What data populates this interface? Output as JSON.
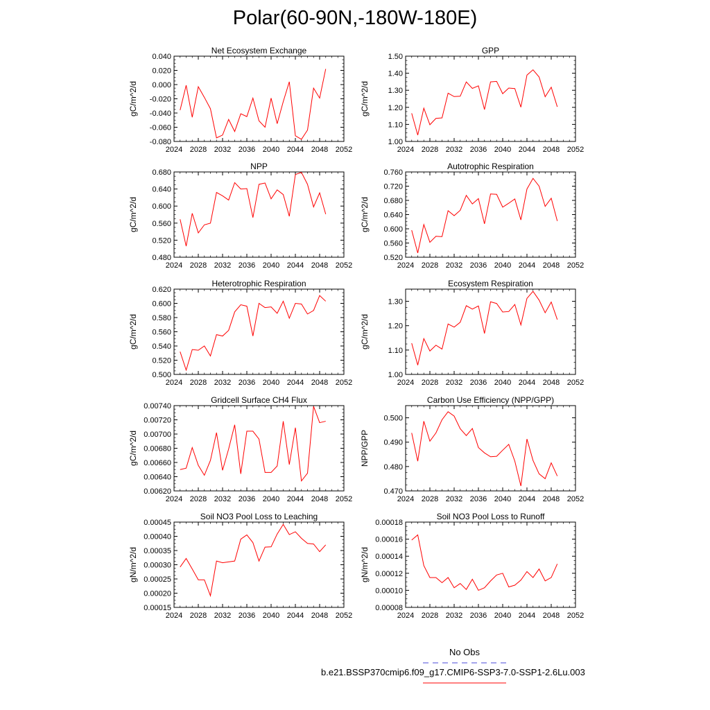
{
  "page": {
    "title": "Polar(60-90N,-180W-180E)"
  },
  "legend": {
    "obs": {
      "label": "No Obs",
      "color": "#4a4ad8"
    },
    "model": {
      "label": "b.e21.BSSP370cmip6.f09_g17.CMIP6-SSP3-7.0-SSP1-2.6Lu.003",
      "color": "#ff0000"
    }
  },
  "chart_data": [
    {
      "type": "line",
      "title": "Net Ecosystem Exchange",
      "ylabel": "gC/m^2/d",
      "xlim": [
        2024,
        2052
      ],
      "xticks": [
        "2024",
        "2028",
        "2032",
        "2036",
        "2040",
        "2044",
        "2048",
        "2052"
      ],
      "ylim": [
        -0.08,
        0.04
      ],
      "yticks": [
        "-0.080",
        "-0.060",
        "-0.040",
        "-0.020",
        "0.000",
        "0.020",
        "0.040"
      ],
      "x": [
        2025,
        2026,
        2027,
        2028,
        2029,
        2030,
        2031,
        2032,
        2033,
        2034,
        2035,
        2036,
        2037,
        2038,
        2039,
        2040,
        2041,
        2042,
        2043,
        2044,
        2045,
        2046,
        2047,
        2048,
        2049
      ],
      "series": [
        {
          "values": [
            -0.036,
            -0.001,
            -0.046,
            -0.003,
            -0.018,
            -0.034,
            -0.075,
            -0.071,
            -0.049,
            -0.066,
            -0.041,
            -0.045,
            -0.019,
            -0.051,
            -0.06,
            -0.019,
            -0.055,
            -0.024,
            0.004,
            -0.072,
            -0.077,
            -0.064,
            -0.005,
            -0.019,
            0.022
          ],
          "color": "#ff0000"
        }
      ]
    },
    {
      "type": "line",
      "title": "GPP",
      "ylabel": "gC/m^2/d",
      "xlim": [
        2024,
        2052
      ],
      "xticks": [
        "2024",
        "2028",
        "2032",
        "2036",
        "2040",
        "2044",
        "2048",
        "2052"
      ],
      "ylim": [
        1.0,
        1.5
      ],
      "yticks": [
        "1.00",
        "1.10",
        "1.20",
        "1.30",
        "1.40",
        "1.50"
      ],
      "x": [
        2025,
        2026,
        2027,
        2028,
        2029,
        2030,
        2031,
        2032,
        2033,
        2034,
        2035,
        2036,
        2037,
        2038,
        2039,
        2040,
        2041,
        2042,
        2043,
        2044,
        2045,
        2046,
        2047,
        2048,
        2049
      ],
      "series": [
        {
          "values": [
            1.165,
            1.037,
            1.195,
            1.098,
            1.135,
            1.138,
            1.283,
            1.263,
            1.265,
            1.349,
            1.311,
            1.326,
            1.187,
            1.349,
            1.352,
            1.28,
            1.313,
            1.31,
            1.201,
            1.389,
            1.42,
            1.378,
            1.262,
            1.318,
            1.203
          ],
          "color": "#ff0000"
        }
      ]
    },
    {
      "type": "line",
      "title": "NPP",
      "ylabel": "gC/m^2/d",
      "xlim": [
        2024,
        2052
      ],
      "xticks": [
        "2024",
        "2028",
        "2032",
        "2036",
        "2040",
        "2044",
        "2048",
        "2052"
      ],
      "ylim": [
        0.48,
        0.68
      ],
      "yticks": [
        "0.480",
        "0.520",
        "0.560",
        "0.600",
        "0.640",
        "0.680"
      ],
      "x": [
        2025,
        2026,
        2027,
        2028,
        2029,
        2030,
        2031,
        2032,
        2033,
        2034,
        2035,
        2036,
        2037,
        2038,
        2039,
        2040,
        2041,
        2042,
        2043,
        2044,
        2045,
        2046,
        2047,
        2048,
        2049
      ],
      "series": [
        {
          "values": [
            0.569,
            0.506,
            0.583,
            0.537,
            0.556,
            0.56,
            0.632,
            0.624,
            0.614,
            0.655,
            0.64,
            0.641,
            0.573,
            0.651,
            0.654,
            0.617,
            0.638,
            0.627,
            0.576,
            0.674,
            0.679,
            0.651,
            0.598,
            0.631,
            0.581
          ],
          "color": "#ff0000"
        }
      ]
    },
    {
      "type": "line",
      "title": "Autotrophic Respiration",
      "ylabel": "gC/m^2/d",
      "xlim": [
        2024,
        2052
      ],
      "xticks": [
        "2024",
        "2028",
        "2032",
        "2036",
        "2040",
        "2044",
        "2048",
        "2052"
      ],
      "ylim": [
        0.52,
        0.76
      ],
      "yticks": [
        "0.520",
        "0.560",
        "0.600",
        "0.640",
        "0.680",
        "0.720",
        "0.760"
      ],
      "x": [
        2025,
        2026,
        2027,
        2028,
        2029,
        2030,
        2031,
        2032,
        2033,
        2034,
        2035,
        2036,
        2037,
        2038,
        2039,
        2040,
        2041,
        2042,
        2043,
        2044,
        2045,
        2046,
        2047,
        2048,
        2049
      ],
      "series": [
        {
          "values": [
            0.596,
            0.532,
            0.612,
            0.562,
            0.579,
            0.578,
            0.651,
            0.637,
            0.652,
            0.694,
            0.67,
            0.685,
            0.614,
            0.698,
            0.697,
            0.661,
            0.672,
            0.684,
            0.625,
            0.712,
            0.742,
            0.72,
            0.663,
            0.686,
            0.622
          ],
          "color": "#ff0000"
        }
      ]
    },
    {
      "type": "line",
      "title": "Heterotrophic Respiration",
      "ylabel": "gC/m^2/d",
      "xlim": [
        2024,
        2052
      ],
      "xticks": [
        "2024",
        "2028",
        "2032",
        "2036",
        "2040",
        "2044",
        "2048",
        "2052"
      ],
      "ylim": [
        0.5,
        0.62
      ],
      "yticks": [
        "0.500",
        "0.520",
        "0.540",
        "0.560",
        "0.580",
        "0.600",
        "0.620"
      ],
      "x": [
        2025,
        2026,
        2027,
        2028,
        2029,
        2030,
        2031,
        2032,
        2033,
        2034,
        2035,
        2036,
        2037,
        2038,
        2039,
        2040,
        2041,
        2042,
        2043,
        2044,
        2045,
        2046,
        2047,
        2048,
        2049
      ],
      "series": [
        {
          "values": [
            0.532,
            0.506,
            0.535,
            0.534,
            0.54,
            0.526,
            0.556,
            0.554,
            0.562,
            0.588,
            0.598,
            0.596,
            0.554,
            0.6,
            0.594,
            0.595,
            0.586,
            0.603,
            0.579,
            0.6,
            0.599,
            0.585,
            0.59,
            0.611,
            0.603
          ],
          "color": "#ff0000"
        }
      ]
    },
    {
      "type": "line",
      "title": "Ecosystem Respiration",
      "ylabel": "gC/m^2/d",
      "xlim": [
        2024,
        2052
      ],
      "xticks": [
        "2024",
        "2028",
        "2032",
        "2036",
        "2040",
        "2044",
        "2048",
        "2052"
      ],
      "ylim": [
        1.0,
        1.35
      ],
      "yticks": [
        "1.00",
        "1.10",
        "1.20",
        "1.30"
      ],
      "x": [
        2025,
        2026,
        2027,
        2028,
        2029,
        2030,
        2031,
        2032,
        2033,
        2034,
        2035,
        2036,
        2037,
        2038,
        2039,
        2040,
        2041,
        2042,
        2043,
        2044,
        2045,
        2046,
        2047,
        2048,
        2049
      ],
      "series": [
        {
          "values": [
            1.128,
            1.038,
            1.147,
            1.096,
            1.12,
            1.104,
            1.207,
            1.194,
            1.214,
            1.282,
            1.268,
            1.281,
            1.168,
            1.298,
            1.291,
            1.256,
            1.258,
            1.287,
            1.203,
            1.312,
            1.341,
            1.305,
            1.253,
            1.297,
            1.225
          ],
          "color": "#ff0000"
        }
      ]
    },
    {
      "type": "line",
      "title": "Gridcell Surface CH4 Flux",
      "ylabel": "gC/m^2/d",
      "xlim": [
        2024,
        2052
      ],
      "xticks": [
        "2024",
        "2028",
        "2032",
        "2036",
        "2040",
        "2044",
        "2048",
        "2052"
      ],
      "ylim": [
        0.0062,
        0.0074
      ],
      "yticks": [
        "0.00620",
        "0.00640",
        "0.00660",
        "0.00680",
        "0.00700",
        "0.00720",
        "0.00740"
      ],
      "x": [
        2025,
        2026,
        2027,
        2028,
        2029,
        2030,
        2031,
        2032,
        2033,
        2034,
        2035,
        2036,
        2037,
        2038,
        2039,
        2040,
        2041,
        2042,
        2043,
        2044,
        2045,
        2046,
        2047,
        2048,
        2049
      ],
      "series": [
        {
          "values": [
            0.0065,
            0.00652,
            0.00681,
            0.00656,
            0.00642,
            0.00663,
            0.00702,
            0.00649,
            0.00679,
            0.00713,
            0.00644,
            0.00704,
            0.00704,
            0.00693,
            0.00646,
            0.00646,
            0.00655,
            0.00718,
            0.00657,
            0.00709,
            0.00634,
            0.00645,
            0.00739,
            0.00716,
            0.00718
          ],
          "color": "#ff0000"
        }
      ]
    },
    {
      "type": "line",
      "title": "Carbon Use Efficiency (NPP/GPP)",
      "ylabel": "NPP/GPP",
      "xlim": [
        2024,
        2052
      ],
      "xticks": [
        "2024",
        "2028",
        "2032",
        "2036",
        "2040",
        "2044",
        "2048",
        "2052"
      ],
      "ylim": [
        0.47,
        0.505
      ],
      "yticks": [
        "0.470",
        "0.480",
        "0.490",
        "0.500"
      ],
      "x": [
        2025,
        2026,
        2027,
        2028,
        2029,
        2030,
        2031,
        2032,
        2033,
        2034,
        2035,
        2036,
        2037,
        2038,
        2039,
        2040,
        2041,
        2042,
        2043,
        2044,
        2045,
        2046,
        2047,
        2048,
        2049
      ],
      "series": [
        {
          "values": [
            0.4938,
            0.4822,
            0.4986,
            0.4904,
            0.4938,
            0.4992,
            0.5025,
            0.5007,
            0.4955,
            0.4927,
            0.4956,
            0.4878,
            0.4856,
            0.484,
            0.4842,
            0.4867,
            0.4891,
            0.4822,
            0.472,
            0.4913,
            0.4825,
            0.477,
            0.475,
            0.4815,
            0.4761
          ],
          "color": "#ff0000"
        }
      ]
    },
    {
      "type": "line",
      "title": "Soil NO3 Pool Loss to Leaching",
      "ylabel": "gN/m^2/d",
      "xlim": [
        2024,
        2052
      ],
      "xticks": [
        "2024",
        "2028",
        "2032",
        "2036",
        "2040",
        "2044",
        "2048",
        "2052"
      ],
      "ylim": [
        0.00015,
        0.00045
      ],
      "yticks": [
        "0.00015",
        "0.00020",
        "0.00025",
        "0.00030",
        "0.00035",
        "0.00040",
        "0.00045"
      ],
      "x": [
        2025,
        2026,
        2027,
        2028,
        2029,
        2030,
        2031,
        2032,
        2033,
        2034,
        2035,
        2036,
        2037,
        2038,
        2039,
        2040,
        2041,
        2042,
        2043,
        2044,
        2045,
        2046,
        2047,
        2048,
        2049
      ],
      "series": [
        {
          "values": [
            0.000292,
            0.000322,
            0.000285,
            0.000247,
            0.000247,
            0.000191,
            0.000313,
            0.000307,
            0.00031,
            0.000313,
            0.00039,
            0.000405,
            0.000378,
            0.000313,
            0.000362,
            0.000363,
            0.000408,
            0.000442,
            0.000406,
            0.000416,
            0.000393,
            0.000375,
            0.000373,
            0.000346,
            0.00037
          ],
          "color": "#ff0000"
        }
      ]
    },
    {
      "type": "line",
      "title": "Soil NO3 Pool Loss to Runoff",
      "ylabel": "gN/m^2/d",
      "xlim": [
        2024,
        2052
      ],
      "xticks": [
        "2024",
        "2028",
        "2032",
        "2036",
        "2040",
        "2044",
        "2048",
        "2052"
      ],
      "ylim": [
        8e-05,
        0.00018
      ],
      "yticks": [
        "0.00008",
        "0.00010",
        "0.00012",
        "0.00014",
        "0.00016",
        "0.00018"
      ],
      "x": [
        2025,
        2026,
        2027,
        2028,
        2029,
        2030,
        2031,
        2032,
        2033,
        2034,
        2035,
        2036,
        2037,
        2038,
        2039,
        2040,
        2041,
        2042,
        2043,
        2044,
        2045,
        2046,
        2047,
        2048,
        2049
      ],
      "series": [
        {
          "values": [
            0.000159,
            0.000165,
            0.000129,
            0.000115,
            0.000115,
            0.000109,
            0.000115,
            0.000103,
            0.000108,
            0.000101,
            0.000113,
            0.0001,
            0.000103,
            0.000111,
            0.000118,
            0.00012,
            0.000104,
            0.000106,
            0.000112,
            0.000122,
            0.000115,
            0.000125,
            0.000111,
            0.000115,
            0.000131
          ],
          "color": "#ff0000"
        }
      ]
    }
  ]
}
